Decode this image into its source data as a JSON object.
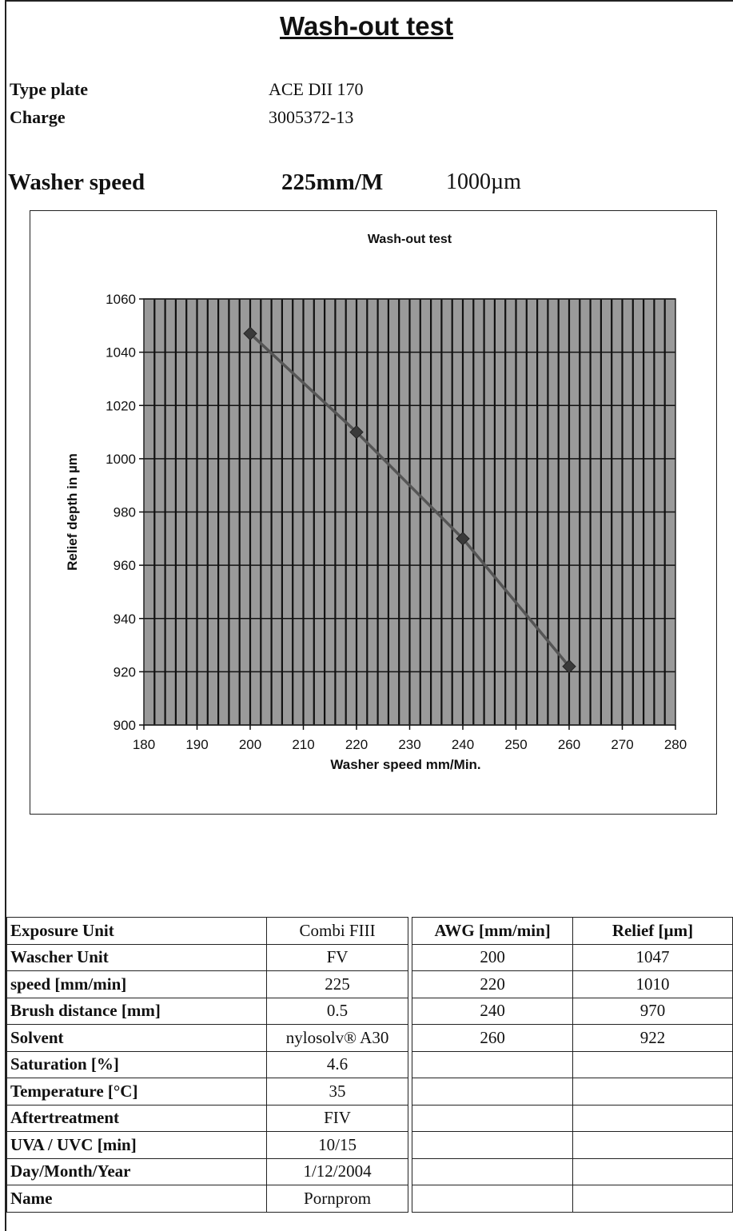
{
  "title": "Wash-out test",
  "header": {
    "type_plate_label": "Type plate",
    "type_plate_value": "ACE DII 170",
    "charge_label": "Charge",
    "charge_value": "3005372-13",
    "washer_speed_label": "Washer speed",
    "washer_speed_value": "225mm/M",
    "washer_depth_value": "1000µm"
  },
  "chart_data": {
    "type": "line",
    "title": "Wash-out test",
    "xlabel": "Washer speed mm/Min.",
    "ylabel": "Relief depth in µm",
    "xlim": [
      180,
      280
    ],
    "ylim": [
      900,
      1060
    ],
    "xticks": [
      180,
      190,
      200,
      210,
      220,
      230,
      240,
      250,
      260,
      270,
      280
    ],
    "yticks": [
      900,
      920,
      940,
      960,
      980,
      1000,
      1020,
      1040,
      1060
    ],
    "grid": true,
    "series": [
      {
        "x": [
          200,
          220,
          240,
          260
        ],
        "y": [
          1047,
          1010,
          970,
          922
        ]
      }
    ],
    "colors": {
      "plot_background": "#9a9a9a",
      "line": "#555555",
      "marker": "#3a3a3a",
      "grid": "#111111"
    }
  },
  "table": {
    "params": [
      {
        "label": "Exposure Unit",
        "value": "Combi FIII"
      },
      {
        "label": "Wascher Unit",
        "value": "FV"
      },
      {
        "label": "speed [mm/min]",
        "value": "225"
      },
      {
        "label": "Brush distance [mm]",
        "value": "0.5"
      },
      {
        "label": "Solvent",
        "value": "nylosolv® A30"
      },
      {
        "label": "Saturation [%]",
        "value": "4.6"
      },
      {
        "label": "Temperature [°C]",
        "value": "35"
      },
      {
        "label": "Aftertreatment",
        "value": "FIV"
      },
      {
        "label": "UVA / UVC [min]",
        "value": "10/15"
      },
      {
        "label": "Day/Month/Year",
        "value": "1/12/2004"
      },
      {
        "label": "Name",
        "value": "Pornprom"
      }
    ],
    "results_header": {
      "awg": "AWG [mm/min]",
      "relief": "Relief [µm]"
    },
    "results": [
      {
        "awg": "200",
        "relief": "1047"
      },
      {
        "awg": "220",
        "relief": "1010"
      },
      {
        "awg": "240",
        "relief": "970"
      },
      {
        "awg": "260",
        "relief": "922"
      },
      {
        "awg": "",
        "relief": ""
      },
      {
        "awg": "",
        "relief": ""
      },
      {
        "awg": "",
        "relief": ""
      },
      {
        "awg": "",
        "relief": ""
      },
      {
        "awg": "",
        "relief": ""
      },
      {
        "awg": "",
        "relief": ""
      }
    ]
  }
}
